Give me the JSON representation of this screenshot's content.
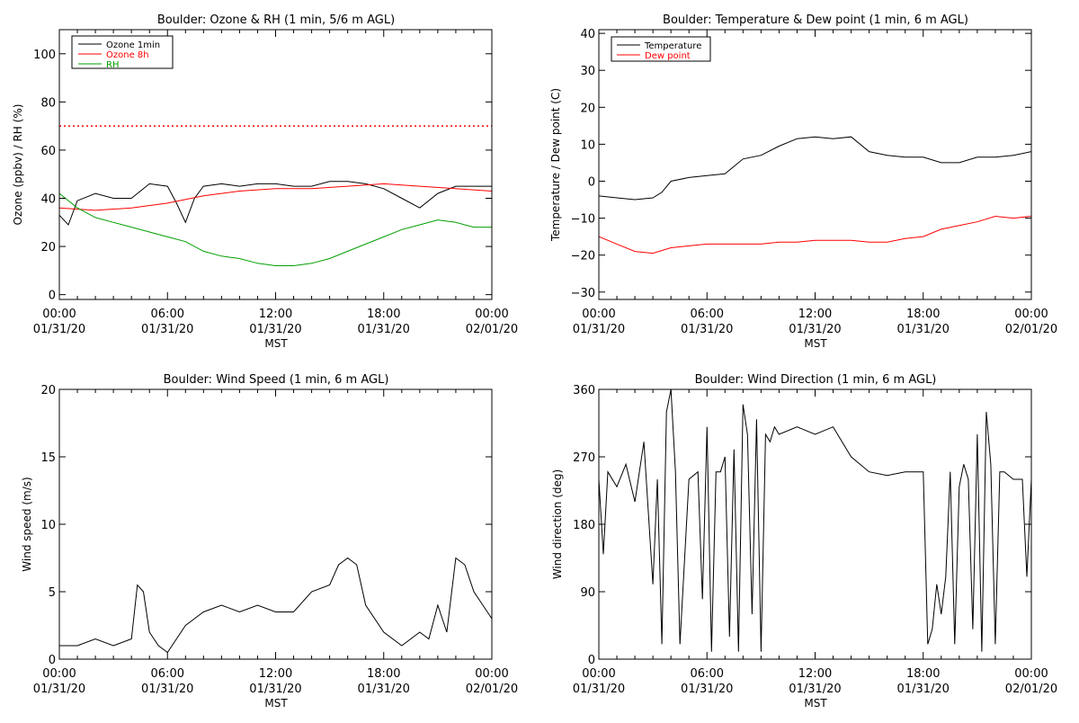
{
  "chart_data": [
    {
      "type": "line",
      "title": "Boulder: Ozone & RH (1 min, 5/6 m AGL)",
      "xlabel": "MST",
      "ylabel": "Ozone (ppbv) / RH (%)",
      "xlim": [
        "01/31/20 00:00",
        "02/01/20 00:00"
      ],
      "ylim": [
        -2,
        110
      ],
      "yticks": [
        "0",
        "20",
        "40",
        "60",
        "80",
        "100"
      ],
      "xticks": [
        {
          "time": "00:00",
          "date": "01/31/20"
        },
        {
          "time": "06:00",
          "date": "01/31/20"
        },
        {
          "time": "12:00",
          "date": "01/31/20"
        },
        {
          "time": "18:00",
          "date": "01/31/20"
        },
        {
          "time": "00:00",
          "date": "02/01/20"
        }
      ],
      "legend_position": "top-left",
      "grid": false,
      "reference_line": {
        "y": 70,
        "color": "#ff0000",
        "style": "dotted"
      },
      "series": [
        {
          "name": "Ozone 1min",
          "color": "#000000",
          "x": [
            "00:00",
            "00:30",
            "01:00",
            "02:00",
            "03:00",
            "04:00",
            "05:00",
            "06:00",
            "06:30",
            "07:00",
            "07:30",
            "08:00",
            "09:00",
            "10:00",
            "11:00",
            "12:00",
            "13:00",
            "14:00",
            "15:00",
            "16:00",
            "17:00",
            "18:00",
            "19:00",
            "20:00",
            "21:00",
            "22:00",
            "23:00",
            "24:00"
          ],
          "y": [
            33,
            29,
            39,
            42,
            40,
            40,
            46,
            45,
            38,
            30,
            40,
            45,
            46,
            45,
            46,
            46,
            45,
            45,
            47,
            47,
            46,
            44,
            40,
            36,
            42,
            45,
            45,
            45
          ]
        },
        {
          "name": "Ozone 8h",
          "color": "#ff0000",
          "x": [
            "00:00",
            "02:00",
            "04:00",
            "06:00",
            "08:00",
            "10:00",
            "12:00",
            "14:00",
            "16:00",
            "18:00",
            "20:00",
            "22:00",
            "24:00"
          ],
          "y": [
            36,
            35,
            36,
            38,
            41,
            43,
            44,
            44,
            45,
            46,
            45,
            44,
            43
          ]
        },
        {
          "name": "RH",
          "color": "#00a000",
          "x": [
            "00:00",
            "01:00",
            "02:00",
            "03:00",
            "04:00",
            "05:00",
            "06:00",
            "07:00",
            "08:00",
            "09:00",
            "10:00",
            "11:00",
            "12:00",
            "13:00",
            "14:00",
            "15:00",
            "16:00",
            "17:00",
            "18:00",
            "19:00",
            "20:00",
            "21:00",
            "22:00",
            "23:00",
            "24:00"
          ],
          "y": [
            42,
            36,
            32,
            30,
            28,
            26,
            24,
            22,
            18,
            16,
            15,
            13,
            12,
            12,
            13,
            15,
            18,
            21,
            24,
            27,
            29,
            31,
            30,
            28,
            28
          ]
        }
      ]
    },
    {
      "type": "line",
      "title": "Boulder: Temperature & Dew point (1 min, 6 m AGL)",
      "xlabel": "MST",
      "ylabel": "Temperature / Dew point (C)",
      "xlim": [
        "01/31/20 00:00",
        "02/01/20 00:00"
      ],
      "ylim": [
        -32,
        41
      ],
      "yticks": [
        "−30",
        "−20",
        "−10",
        "0",
        "10",
        "20",
        "30",
        "40"
      ],
      "xticks": [
        {
          "time": "00:00",
          "date": "01/31/20"
        },
        {
          "time": "06:00",
          "date": "01/31/20"
        },
        {
          "time": "12:00",
          "date": "01/31/20"
        },
        {
          "time": "18:00",
          "date": "01/31/20"
        },
        {
          "time": "00:00",
          "date": "02/01/20"
        }
      ],
      "legend_position": "top-left",
      "grid": false,
      "series": [
        {
          "name": "Temperature",
          "color": "#000000",
          "x": [
            "00:00",
            "01:00",
            "02:00",
            "03:00",
            "03:30",
            "04:00",
            "05:00",
            "06:00",
            "07:00",
            "08:00",
            "09:00",
            "10:00",
            "11:00",
            "12:00",
            "13:00",
            "14:00",
            "15:00",
            "16:00",
            "17:00",
            "18:00",
            "19:00",
            "20:00",
            "21:00",
            "22:00",
            "23:00",
            "24:00"
          ],
          "y": [
            -4,
            -4.5,
            -5,
            -4.5,
            -3,
            0,
            1,
            1.5,
            2,
            6,
            7,
            9.5,
            11.5,
            12,
            11.5,
            12,
            8,
            7,
            6.5,
            6.5,
            5,
            5,
            6.5,
            6.5,
            7,
            8
          ]
        },
        {
          "name": "Dew point",
          "color": "#ff0000",
          "x": [
            "00:00",
            "01:00",
            "02:00",
            "03:00",
            "04:00",
            "05:00",
            "06:00",
            "07:00",
            "08:00",
            "09:00",
            "10:00",
            "11:00",
            "12:00",
            "13:00",
            "14:00",
            "15:00",
            "16:00",
            "17:00",
            "18:00",
            "19:00",
            "20:00",
            "21:00",
            "22:00",
            "23:00",
            "24:00"
          ],
          "y": [
            -15,
            -17,
            -19,
            -19.5,
            -18,
            -17.5,
            -17,
            -17,
            -17,
            -17,
            -16.5,
            -16.5,
            -16,
            -16,
            -16,
            -16.5,
            -16.5,
            -15.5,
            -15,
            -13,
            -12,
            -11,
            -9.5,
            -10,
            -9.5
          ]
        }
      ]
    },
    {
      "type": "line",
      "title": "Boulder: Wind Speed (1 min, 6 m AGL)",
      "xlabel": "MST",
      "ylabel": "Wind speed (m/s)",
      "xlim": [
        "01/31/20 00:00",
        "02/01/20 00:00"
      ],
      "ylim": [
        0,
        20
      ],
      "yticks": [
        "0",
        "5",
        "10",
        "15",
        "20"
      ],
      "xticks": [
        {
          "time": "00:00",
          "date": "01/31/20"
        },
        {
          "time": "06:00",
          "date": "01/31/20"
        },
        {
          "time": "12:00",
          "date": "01/31/20"
        },
        {
          "time": "18:00",
          "date": "01/31/20"
        },
        {
          "time": "00:00",
          "date": "02/01/20"
        }
      ],
      "grid": false,
      "series": [
        {
          "color": "#000000",
          "x": [
            "00:00",
            "01:00",
            "02:00",
            "03:00",
            "04:00",
            "04:20",
            "04:40",
            "05:00",
            "05:30",
            "06:00",
            "06:30",
            "07:00",
            "07:30",
            "08:00",
            "09:00",
            "10:00",
            "11:00",
            "12:00",
            "13:00",
            "14:00",
            "15:00",
            "15:30",
            "16:00",
            "16:30",
            "17:00",
            "18:00",
            "19:00",
            "20:00",
            "20:30",
            "21:00",
            "21:30",
            "22:00",
            "22:30",
            "23:00",
            "23:30",
            "24:00"
          ],
          "y": [
            1,
            1,
            1.5,
            1,
            1.5,
            5.5,
            5,
            2,
            1,
            0.5,
            1.5,
            2.5,
            3,
            3.5,
            4,
            3.5,
            4,
            3.5,
            3.5,
            5,
            5.5,
            7,
            7.5,
            7,
            4,
            2,
            1,
            2,
            1.5,
            4,
            2,
            7.5,
            7,
            5,
            4,
            3
          ]
        }
      ]
    },
    {
      "type": "line",
      "title": "Boulder: Wind Direction (1 min, 6 m AGL)",
      "xlabel": "MST",
      "ylabel": "Wind direction (deg)",
      "xlim": [
        "01/31/20 00:00",
        "02/01/20 00:00"
      ],
      "ylim": [
        0,
        360
      ],
      "yticks": [
        "0",
        "90",
        "180",
        "270",
        "360"
      ],
      "xticks": [
        {
          "time": "00:00",
          "date": "01/31/20"
        },
        {
          "time": "06:00",
          "date": "01/31/20"
        },
        {
          "time": "12:00",
          "date": "01/31/20"
        },
        {
          "time": "18:00",
          "date": "01/31/20"
        },
        {
          "time": "00:00",
          "date": "02/01/20"
        }
      ],
      "grid": false,
      "series": [
        {
          "color": "#000000",
          "x": [
            "00:00",
            "00:15",
            "00:30",
            "01:00",
            "01:30",
            "02:00",
            "02:30",
            "03:00",
            "03:15",
            "03:30",
            "03:45",
            "04:00",
            "04:15",
            "04:30",
            "05:00",
            "05:30",
            "05:45",
            "06:00",
            "06:15",
            "06:30",
            "06:45",
            "07:00",
            "07:15",
            "07:30",
            "07:45",
            "08:00",
            "08:15",
            "08:30",
            "08:45",
            "09:00",
            "09:15",
            "09:30",
            "09:45",
            "10:00",
            "11:00",
            "12:00",
            "13:00",
            "14:00",
            "15:00",
            "16:00",
            "17:00",
            "18:00",
            "18:15",
            "18:30",
            "18:45",
            "19:00",
            "19:15",
            "19:30",
            "19:45",
            "20:00",
            "20:15",
            "20:30",
            "20:45",
            "21:00",
            "21:15",
            "21:30",
            "21:45",
            "22:00",
            "22:15",
            "22:30",
            "23:00",
            "23:30",
            "23:45",
            "24:00"
          ],
          "y": [
            240,
            140,
            250,
            230,
            260,
            210,
            290,
            100,
            240,
            20,
            330,
            360,
            250,
            20,
            240,
            250,
            80,
            310,
            10,
            250,
            250,
            270,
            30,
            280,
            10,
            340,
            300,
            60,
            320,
            10,
            300,
            290,
            310,
            300,
            310,
            300,
            310,
            270,
            250,
            245,
            250,
            250,
            20,
            40,
            100,
            60,
            110,
            250,
            20,
            230,
            260,
            240,
            40,
            300,
            10,
            330,
            260,
            20,
            250,
            250,
            240,
            240,
            110,
            240
          ]
        }
      ]
    }
  ]
}
